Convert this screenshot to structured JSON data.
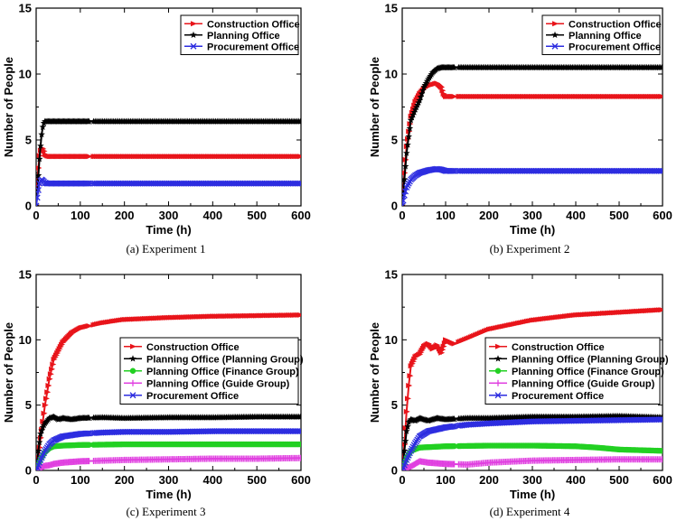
{
  "chart_data": [
    {
      "type": "line",
      "caption": "(a) Experiment 1",
      "xlabel": "Time (h)",
      "ylabel": "Number of People",
      "xlim": [
        0,
        600
      ],
      "ylim": [
        0,
        15
      ],
      "xticks": [
        0,
        100,
        200,
        300,
        400,
        500,
        600
      ],
      "yticks": [
        0,
        5,
        10,
        15
      ],
      "legend_position": "top-right",
      "series": [
        {
          "name": "Construction Office",
          "color": "#e8141a",
          "marker": "triangle-right",
          "x": [
            0,
            4,
            8,
            12,
            16,
            20,
            25,
            30,
            40,
            600
          ],
          "y": [
            0,
            2.5,
            4.0,
            4.4,
            4.3,
            3.9,
            3.8,
            3.75,
            3.75,
            3.75
          ]
        },
        {
          "name": "Planning Office",
          "color": "#000000",
          "marker": "star",
          "x": [
            0,
            4,
            8,
            12,
            16,
            20,
            25,
            30,
            40,
            600
          ],
          "y": [
            0,
            1.8,
            3.8,
            5.3,
            6.2,
            6.4,
            6.4,
            6.4,
            6.4,
            6.4
          ]
        },
        {
          "name": "Procurement Office",
          "color": "#2d2de0",
          "marker": "x",
          "x": [
            0,
            4,
            8,
            12,
            16,
            20,
            25,
            30,
            40,
            600
          ],
          "y": [
            0,
            1.0,
            1.8,
            2.0,
            1.9,
            1.75,
            1.7,
            1.7,
            1.7,
            1.7
          ]
        }
      ]
    },
    {
      "type": "line",
      "caption": "(b) Experiment 2",
      "xlabel": "Time (h)",
      "ylabel": "Number of People",
      "xlim": [
        0,
        600
      ],
      "ylim": [
        0,
        15
      ],
      "xticks": [
        0,
        100,
        200,
        300,
        400,
        500,
        600
      ],
      "yticks": [
        0,
        5,
        10,
        15
      ],
      "legend_position": "top-right",
      "series": [
        {
          "name": "Construction Office",
          "color": "#e8141a",
          "marker": "triangle-right",
          "x": [
            0,
            5,
            10,
            20,
            30,
            40,
            50,
            60,
            70,
            80,
            90,
            95,
            100,
            600
          ],
          "y": [
            0,
            2.5,
            4.5,
            6.8,
            7.9,
            8.5,
            8.9,
            9.1,
            9.2,
            9.3,
            9.0,
            8.5,
            8.3,
            8.3
          ]
        },
        {
          "name": "Planning Office",
          "color": "#000000",
          "marker": "star",
          "x": [
            0,
            5,
            10,
            20,
            30,
            40,
            50,
            60,
            70,
            80,
            90,
            100,
            600
          ],
          "y": [
            0,
            2.0,
            4.0,
            6.5,
            7.3,
            8.0,
            9.0,
            9.6,
            10.1,
            10.4,
            10.5,
            10.5,
            10.5
          ]
        },
        {
          "name": "Procurement Office",
          "color": "#2d2de0",
          "marker": "x",
          "x": [
            0,
            5,
            10,
            20,
            30,
            40,
            50,
            60,
            70,
            80,
            90,
            100,
            600
          ],
          "y": [
            0,
            0.8,
            1.4,
            2.0,
            2.3,
            2.5,
            2.6,
            2.7,
            2.75,
            2.8,
            2.75,
            2.65,
            2.65
          ]
        }
      ]
    },
    {
      "type": "line",
      "caption": "(c) Experiment 3",
      "xlabel": "Time (h)",
      "ylabel": "Number of People",
      "xlim": [
        0,
        600
      ],
      "ylim": [
        0,
        15
      ],
      "xticks": [
        0,
        100,
        200,
        300,
        400,
        500,
        600
      ],
      "yticks": [
        0,
        5,
        10,
        15
      ],
      "legend_position": "center-right",
      "series": [
        {
          "name": "Construction Office",
          "color": "#e8141a",
          "marker": "triangle-right",
          "x": [
            0,
            5,
            10,
            20,
            30,
            40,
            60,
            80,
            100,
            150,
            200,
            300,
            400,
            500,
            600
          ],
          "y": [
            0,
            1.0,
            2.5,
            5.0,
            7.0,
            8.5,
            9.8,
            10.5,
            10.9,
            11.3,
            11.55,
            11.7,
            11.8,
            11.85,
            11.9
          ]
        },
        {
          "name": "Planning Office (Planning Group)",
          "color": "#000000",
          "marker": "star",
          "x": [
            0,
            5,
            10,
            15,
            20,
            30,
            40,
            50,
            60,
            80,
            100,
            150,
            200,
            300,
            400,
            500,
            600
          ],
          "y": [
            0,
            1.5,
            2.8,
            3.3,
            3.6,
            4.0,
            4.1,
            3.9,
            4.0,
            3.9,
            4.0,
            4.05,
            4.0,
            4.05,
            4.05,
            4.1,
            4.1
          ]
        },
        {
          "name": "Planning Office (Finance Group)",
          "color": "#22d022",
          "marker": "circle",
          "x": [
            0,
            5,
            10,
            20,
            30,
            40,
            60,
            100,
            200,
            600
          ],
          "y": [
            0,
            0.4,
            0.9,
            1.4,
            1.7,
            1.85,
            1.9,
            1.95,
            2.0,
            2.0
          ]
        },
        {
          "name": "Planning Office (Guide Group)",
          "color": "#e040e0",
          "marker": "plus",
          "x": [
            0,
            10,
            20,
            30,
            40,
            60,
            100,
            200,
            300,
            400,
            500,
            600
          ],
          "y": [
            0,
            0.2,
            0.35,
            0.4,
            0.5,
            0.6,
            0.7,
            0.8,
            0.85,
            0.9,
            0.9,
            0.95
          ]
        },
        {
          "name": "Procurement Office",
          "color": "#2d2de0",
          "marker": "x",
          "x": [
            0,
            10,
            20,
            30,
            40,
            60,
            100,
            150,
            200,
            300,
            400,
            600
          ],
          "y": [
            0,
            0.8,
            1.5,
            2.0,
            2.3,
            2.6,
            2.8,
            2.9,
            2.95,
            2.95,
            3.0,
            3.0
          ]
        }
      ]
    },
    {
      "type": "line",
      "caption": "(d) Experiment 4",
      "xlabel": "Time (h)",
      "ylabel": "Number of People",
      "xlim": [
        0,
        600
      ],
      "ylim": [
        0,
        15
      ],
      "xticks": [
        0,
        100,
        200,
        300,
        400,
        500,
        600
      ],
      "yticks": [
        0,
        5,
        10,
        15
      ],
      "legend_position": "center-right",
      "series": [
        {
          "name": "Construction Office",
          "color": "#e8141a",
          "marker": "triangle-right",
          "x": [
            0,
            5,
            10,
            15,
            20,
            30,
            40,
            50,
            60,
            70,
            80,
            90,
            100,
            120,
            150,
            200,
            300,
            400,
            500,
            600
          ],
          "y": [
            0,
            2.0,
            4.5,
            6.5,
            8.0,
            8.7,
            8.9,
            9.5,
            9.7,
            9.3,
            9.6,
            9.0,
            10.0,
            9.7,
            10.1,
            10.8,
            11.5,
            11.9,
            12.1,
            12.3
          ]
        },
        {
          "name": "Planning Office (Planning Group)",
          "color": "#000000",
          "marker": "star",
          "x": [
            0,
            5,
            10,
            15,
            20,
            30,
            40,
            50,
            60,
            80,
            100,
            150,
            200,
            300,
            400,
            500,
            600
          ],
          "y": [
            0,
            1.5,
            3.0,
            3.7,
            3.9,
            3.8,
            4.0,
            3.9,
            3.8,
            4.0,
            3.9,
            4.0,
            4.0,
            4.1,
            4.1,
            4.15,
            4.05
          ]
        },
        {
          "name": "Planning Office (Finance Group)",
          "color": "#22d022",
          "marker": "circle",
          "x": [
            0,
            5,
            10,
            20,
            40,
            100,
            200,
            300,
            400,
            450,
            500,
            600
          ],
          "y": [
            0,
            0.5,
            1.0,
            1.5,
            1.75,
            1.85,
            1.9,
            1.9,
            1.85,
            1.75,
            1.6,
            1.5
          ]
        },
        {
          "name": "Planning Office (Guide Group)",
          "color": "#e040e0",
          "marker": "plus",
          "x": [
            0,
            10,
            20,
            30,
            40,
            60,
            100,
            150,
            200,
            300,
            400,
            500,
            600
          ],
          "y": [
            0,
            0.2,
            0.3,
            0.5,
            0.7,
            0.6,
            0.5,
            0.45,
            0.6,
            0.75,
            0.8,
            0.85,
            0.85
          ]
        },
        {
          "name": "Procurement Office",
          "color": "#2d2de0",
          "marker": "x",
          "x": [
            0,
            10,
            20,
            30,
            40,
            60,
            100,
            150,
            200,
            300,
            400,
            500,
            600
          ],
          "y": [
            0,
            0.8,
            1.5,
            2.1,
            2.6,
            3.0,
            3.3,
            3.5,
            3.6,
            3.75,
            3.8,
            3.85,
            3.9
          ]
        }
      ]
    }
  ]
}
